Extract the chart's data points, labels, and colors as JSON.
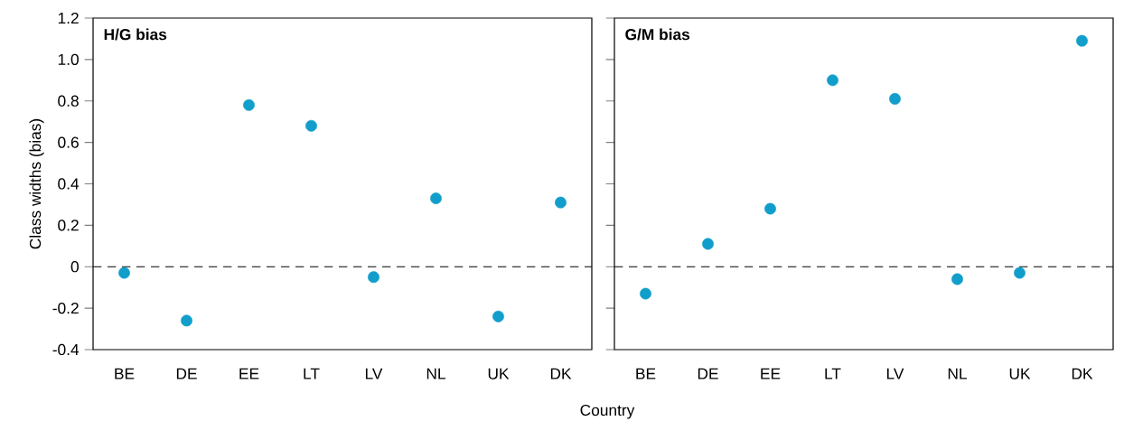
{
  "chart_data": [
    {
      "type": "scatter",
      "title": "H/G bias",
      "xlabel": "Country",
      "ylabel": "Class widths (bias)",
      "categories": [
        "BE",
        "DE",
        "EE",
        "LT",
        "LV",
        "NL",
        "UK",
        "DK"
      ],
      "series": [
        {
          "color": "#119ecb",
          "values": [
            -0.03,
            -0.26,
            0.78,
            0.68,
            -0.05,
            0.33,
            -0.24,
            0.31
          ]
        }
      ],
      "ylim": [
        -0.4,
        1.2
      ],
      "yticks": [
        -0.4,
        -0.2,
        0,
        0.2,
        0.4,
        0.6,
        0.8,
        {
          "value": 1,
          "label": "1.0"
        },
        1.2
      ],
      "ref_lines": [
        {
          "axis": "y",
          "value": 0,
          "line_style": "dashed"
        }
      ]
    },
    {
      "type": "scatter",
      "title": "G/M bias",
      "categories": [
        "BE",
        "DE",
        "EE",
        "LT",
        "LV",
        "NL",
        "UK",
        "DK"
      ],
      "series": [
        {
          "color": "#119ecb",
          "values": [
            -0.13,
            0.11,
            0.28,
            0.9,
            0.81,
            -0.06,
            -0.03,
            1.09
          ]
        }
      ],
      "ylim": [
        -0.4,
        1.2
      ],
      "yticks": [
        -0.4,
        -0.2,
        0,
        0.2,
        0.4,
        0.6,
        0.8,
        1,
        1.2
      ],
      "tick_labels": "x",
      "ref_lines": [
        {
          "axis": "y",
          "value": 0,
          "line_style": "dashed"
        }
      ]
    }
  ]
}
